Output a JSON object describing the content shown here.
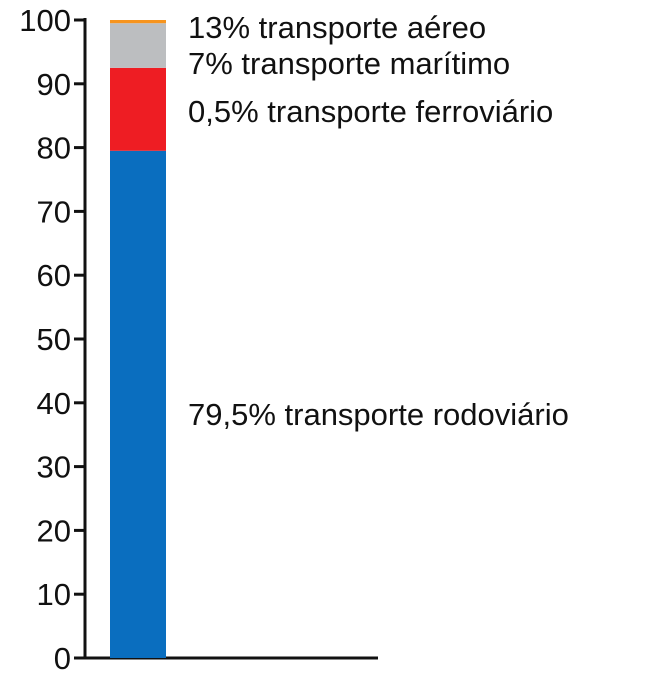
{
  "chart_data": {
    "type": "bar",
    "stacked": true,
    "categories": [
      ""
    ],
    "ylim": [
      0,
      100
    ],
    "yticks": [
      0,
      10,
      20,
      30,
      40,
      50,
      60,
      70,
      80,
      90,
      100
    ],
    "series": [
      {
        "name": "79,5% transporte rodoviário",
        "values": [
          79.5
        ],
        "color": "#0a6ebf"
      },
      {
        "name": "13% transporte aéreo",
        "values": [
          13
        ],
        "color": "#ee1d23"
      },
      {
        "name": "7% transporte marítimo",
        "values": [
          7
        ],
        "color": "#bcbec0"
      },
      {
        "name": "0,5% transporte ferroviário",
        "values": [
          0.5
        ],
        "color": "#f7941d"
      }
    ],
    "grid": false,
    "legend": "labels beside segments"
  }
}
